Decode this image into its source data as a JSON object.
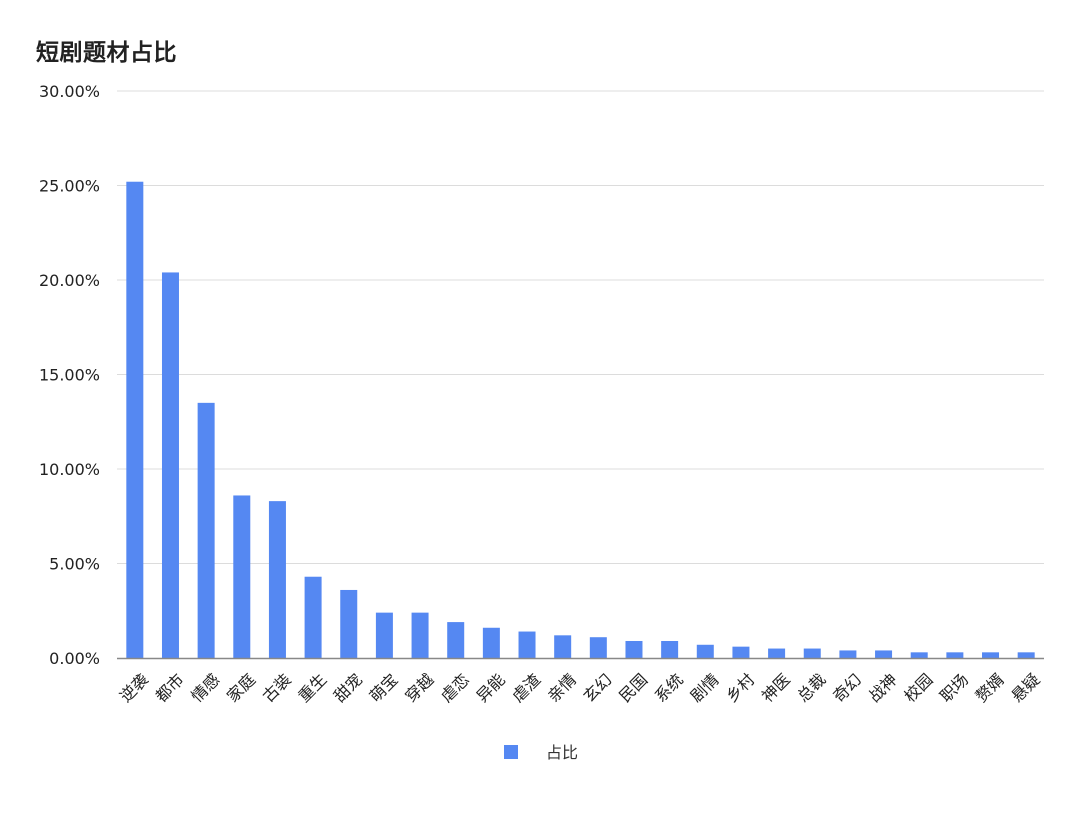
{
  "chart_data": {
    "type": "bar",
    "title": "短剧题材占比",
    "categories": [
      "逆袭",
      "都市",
      "情感",
      "家庭",
      "古装",
      "重生",
      "甜宠",
      "萌宝",
      "穿越",
      "虐恋",
      "异能",
      "虐渣",
      "亲情",
      "玄幻",
      "民国",
      "系统",
      "剧情",
      "乡村",
      "神医",
      "总裁",
      "奇幻",
      "战神",
      "校园",
      "职场",
      "赘婿",
      "悬疑"
    ],
    "series": [
      {
        "name": "占比",
        "values": [
          25.2,
          20.4,
          13.5,
          8.6,
          8.3,
          4.3,
          3.6,
          2.4,
          2.4,
          1.9,
          1.6,
          1.4,
          1.2,
          1.1,
          0.9,
          0.9,
          0.7,
          0.6,
          0.5,
          0.5,
          0.4,
          0.4,
          0.3,
          0.3,
          0.3,
          0.3
        ]
      }
    ],
    "yticks": [
      "0.00%",
      "5.00%",
      "10.00%",
      "15.00%",
      "20.00%",
      "25.00%",
      "30.00%"
    ],
    "ylim": [
      0,
      30
    ],
    "xlabel": "",
    "ylabel": "",
    "grid": true,
    "legend_position": "bottom-center",
    "bar_color": "#5588f2"
  }
}
